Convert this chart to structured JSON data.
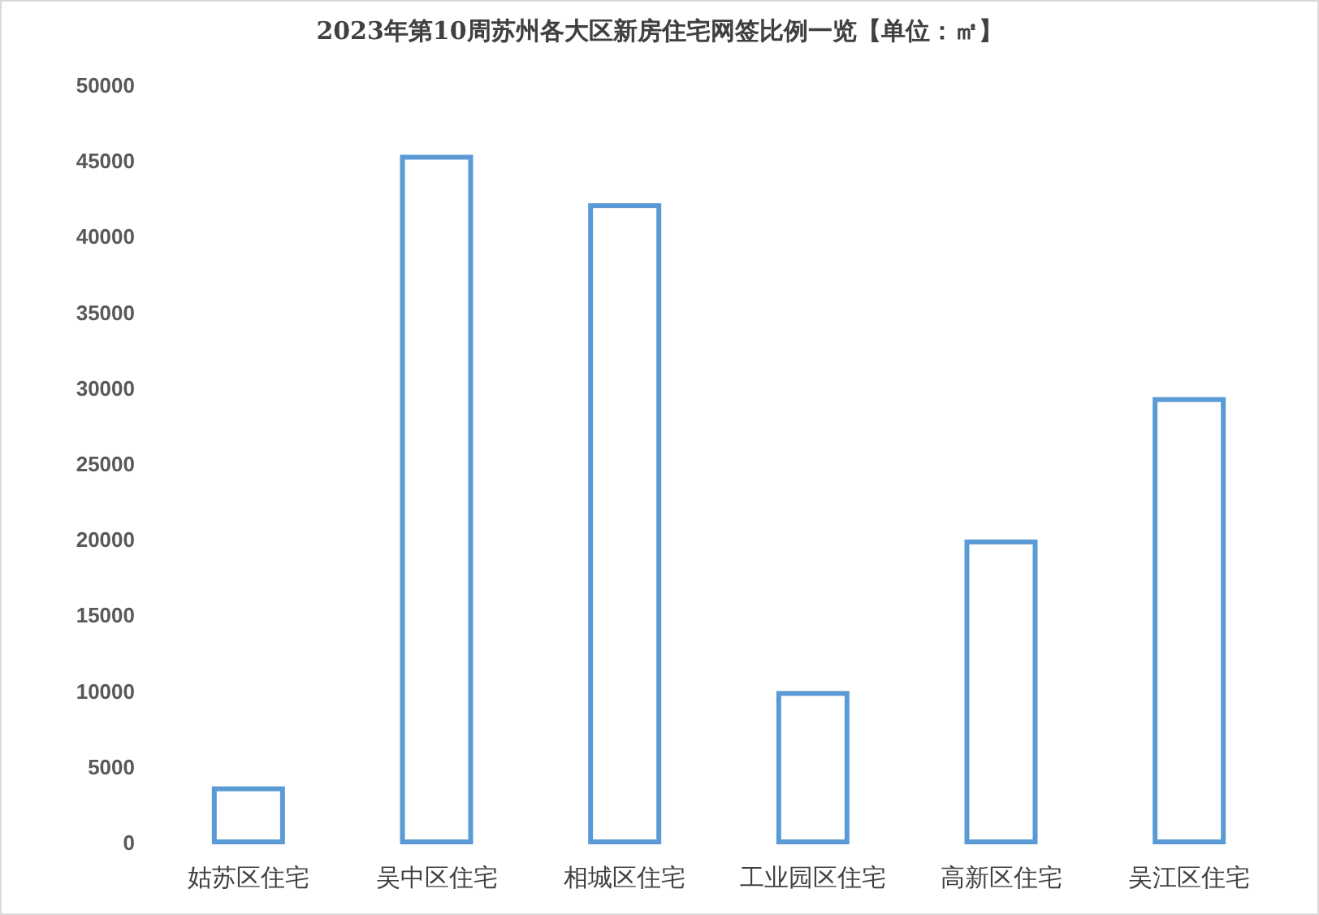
{
  "chart_data": {
    "type": "bar",
    "title": "2023年第10周苏州各大区新房住宅网签比例一览【单位：㎡】",
    "categories": [
      "姑苏区住宅",
      "吴中区住宅",
      "相城区住宅",
      "工业园区住宅",
      "高新区住宅",
      "吴江区住宅"
    ],
    "values": [
      3500,
      45200,
      42000,
      9800,
      19800,
      29200
    ],
    "color": "#5b9bd5",
    "ylim": [
      0,
      50000
    ],
    "yticks": [
      0,
      5000,
      10000,
      15000,
      20000,
      25000,
      30000,
      35000,
      40000,
      45000,
      50000
    ],
    "grid": false
  }
}
